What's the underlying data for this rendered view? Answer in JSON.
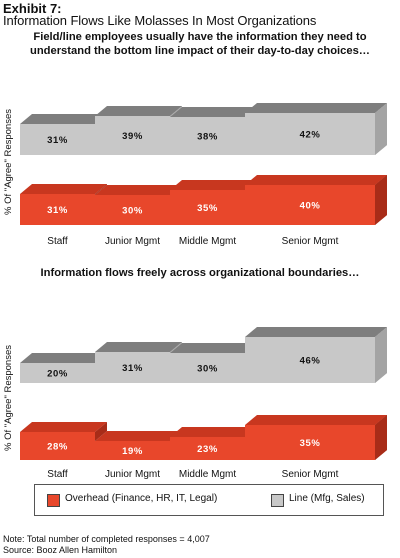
{
  "exhibit": "Exhibit 7:",
  "title": "Information Flows Like Molasses In Most Organizations",
  "colors": {
    "overhead": "#e8472b",
    "overhead_top": "#c8371f",
    "overhead_side": "#a82c18",
    "line": "#c8c8c8",
    "line_top": "#7e7e7e",
    "line_side": "#a4a4a4"
  },
  "legend": {
    "overhead": "Overhead (Finance, HR, IT, Legal)",
    "line": "Line (Mfg, Sales)"
  },
  "note": "Note: Total number of completed responses = 4,007",
  "source": "Source: Booz Allen Hamilton",
  "chart_data": [
    {
      "type": "bar",
      "title": "Field/line employees usually have the information they need to understand the bottom line impact of their day-to-day choices…",
      "ylabel": "% Of \"Agree\" Responses",
      "categories": [
        "Staff",
        "Junior Mgmt",
        "Middle Mgmt",
        "Senior Mgmt"
      ],
      "series": [
        {
          "name": "Line (Mfg, Sales)",
          "values": [
            31,
            39,
            38,
            42
          ],
          "labels": [
            "31%",
            "39%",
            "38%",
            "42%"
          ]
        },
        {
          "name": "Overhead (Finance, HR, IT, Legal)",
          "values": [
            31,
            30,
            35,
            40
          ],
          "labels": [
            "31%",
            "30%",
            "35%",
            "40%"
          ]
        }
      ]
    },
    {
      "type": "bar",
      "title": "Information flows freely across organizational boundaries…",
      "ylabel": "% Of \"Agree\" Responses",
      "categories": [
        "Staff",
        "Junior Mgmt",
        "Middle Mgmt",
        "Senior Mgmt"
      ],
      "series": [
        {
          "name": "Line (Mfg, Sales)",
          "values": [
            20,
            31,
            30,
            46
          ],
          "labels": [
            "20%",
            "31%",
            "30%",
            "46%"
          ]
        },
        {
          "name": "Overhead (Finance, HR, IT, Legal)",
          "values": [
            28,
            19,
            23,
            35
          ],
          "labels": [
            "28%",
            "19%",
            "23%",
            "35%"
          ]
        }
      ]
    }
  ]
}
